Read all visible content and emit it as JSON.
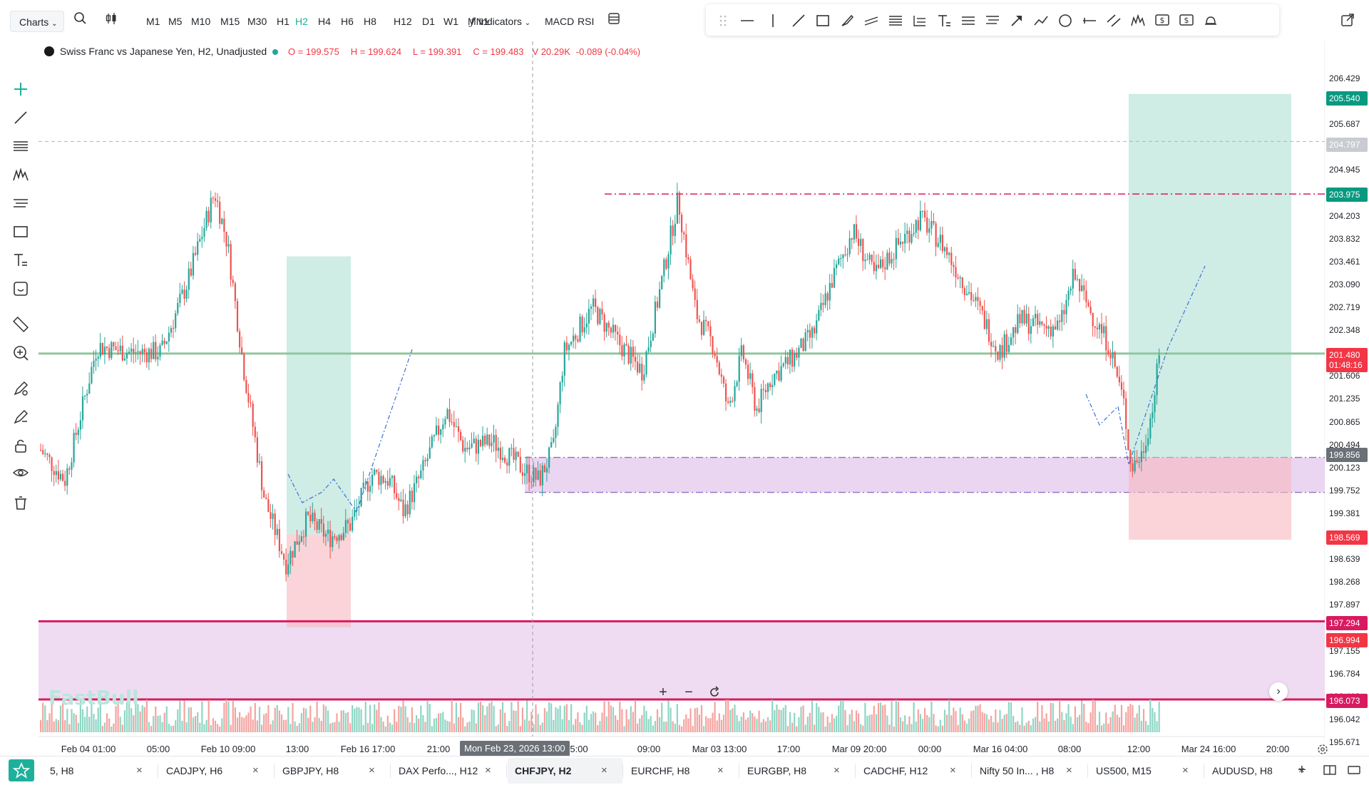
{
  "toolbar": {
    "charts_label": "Charts",
    "timeframes": [
      "M1",
      "M5",
      "M10",
      "M15",
      "M30",
      "H1",
      "H2",
      "H4",
      "H6",
      "H8",
      "H12",
      "D1",
      "W1",
      "MN1"
    ],
    "active_timeframe": "H2",
    "indicators_label": "Indicators",
    "macd_label": "MACD",
    "rsi_label": "RSI"
  },
  "legend": {
    "title": "Swiss Franc vs Japanese Yen, H2, Unadjusted",
    "open": "O = 199.575",
    "high": "H = 199.624",
    "low": "L = 199.391",
    "close": "C = 199.483",
    "volume": "V 20.29K",
    "change": "-0.089 (-0.04%)"
  },
  "price_axis": {
    "labels": [
      "206.429",
      "206.058",
      "205.687",
      "205.316",
      "204.945",
      "204.574",
      "204.203",
      "203.832",
      "203.461",
      "203.090",
      "202.719",
      "202.348",
      "201.977",
      "201.606",
      "201.235",
      "200.865",
      "200.494",
      "200.123",
      "199.752",
      "199.381",
      "199.010",
      "198.639",
      "198.268",
      "197.897",
      "197.526",
      "197.155",
      "196.784",
      "196.413",
      "196.042",
      "195.671"
    ],
    "tags": [
      {
        "value": "205.540",
        "color": "#089981"
      },
      {
        "value": "204.797",
        "color": "#c8ccd1"
      },
      {
        "value": "203.975",
        "color": "#089981"
      },
      {
        "value": "201.480",
        "color": "#f23645"
      },
      {
        "value": "01:48:16",
        "color": "#f23645"
      },
      {
        "value": "199.856",
        "color": "#6b7077"
      },
      {
        "value": "198.569",
        "color": "#f23645"
      },
      {
        "value": "197.294",
        "color": "#d81b60"
      },
      {
        "value": "196.994",
        "color": "#f23645"
      },
      {
        "value": "196.073",
        "color": "#d81b60"
      }
    ]
  },
  "time_axis": {
    "labels": [
      "Feb 04 01:00",
      "05:00",
      "Feb 10 09:00",
      "13:00",
      "Feb 16 17:00",
      "21:00",
      "5:00",
      "09:00",
      "Mar 03 13:00",
      "17:00",
      "Mar 09 20:00",
      "00:00",
      "Mar 16 04:00",
      "08:00",
      "12:00",
      "Mar 24 16:00",
      "20:00"
    ],
    "crosshair_label": "Mon Feb 23, 2026 13:00"
  },
  "watermark": "FastBull",
  "tabs": [
    {
      "label": "5, H8",
      "active": false
    },
    {
      "label": "CADJPY, H6",
      "active": false
    },
    {
      "label": "GBPJPY, H8",
      "active": false
    },
    {
      "label": "DAX Perfo..., H12",
      "active": false
    },
    {
      "label": "CHFJPY, H2",
      "active": true
    },
    {
      "label": "EURCHF, H8",
      "active": false
    },
    {
      "label": "EURGBP, H8",
      "active": false
    },
    {
      "label": "CADCHF, H12",
      "active": false
    },
    {
      "label": "Nifty 50 In... , H8",
      "active": false
    },
    {
      "label": "US500, M15",
      "active": false
    },
    {
      "label": "AUDUSD, H8",
      "active": false
    }
  ],
  "chart_data": {
    "type": "candlestick",
    "symbol": "CHFJPY",
    "timeframe": "H2",
    "ylim": [
      195.5,
      206.6
    ],
    "horizontal_lines": [
      {
        "price": 201.48,
        "style": "solid",
        "color": "#8fc79b"
      },
      {
        "price": 203.975,
        "style": "dash-dot",
        "color": "#d81b60"
      },
      {
        "price": 197.294,
        "style": "solid",
        "color": "#d81b60"
      },
      {
        "price": 196.073,
        "style": "solid",
        "color": "#d81b60"
      },
      {
        "price": 204.797,
        "style": "dashed",
        "color": "#b0b4b9"
      }
    ],
    "zones": [
      {
        "top": 199.856,
        "bottom": 199.31,
        "color": "#e7cff0"
      },
      {
        "top": 197.294,
        "bottom": 196.073,
        "color": "#ecd6f0"
      }
    ],
    "positions": [
      {
        "entry": 198.65,
        "target": 203.0,
        "stop": 197.2
      },
      {
        "entry": 199.856,
        "target": 205.54,
        "stop": 198.569
      }
    ],
    "colors": {
      "up": "#26a69a",
      "down": "#ef5350",
      "volume_up": "#8fd6c4",
      "volume_down": "#f5a3a0"
    }
  }
}
